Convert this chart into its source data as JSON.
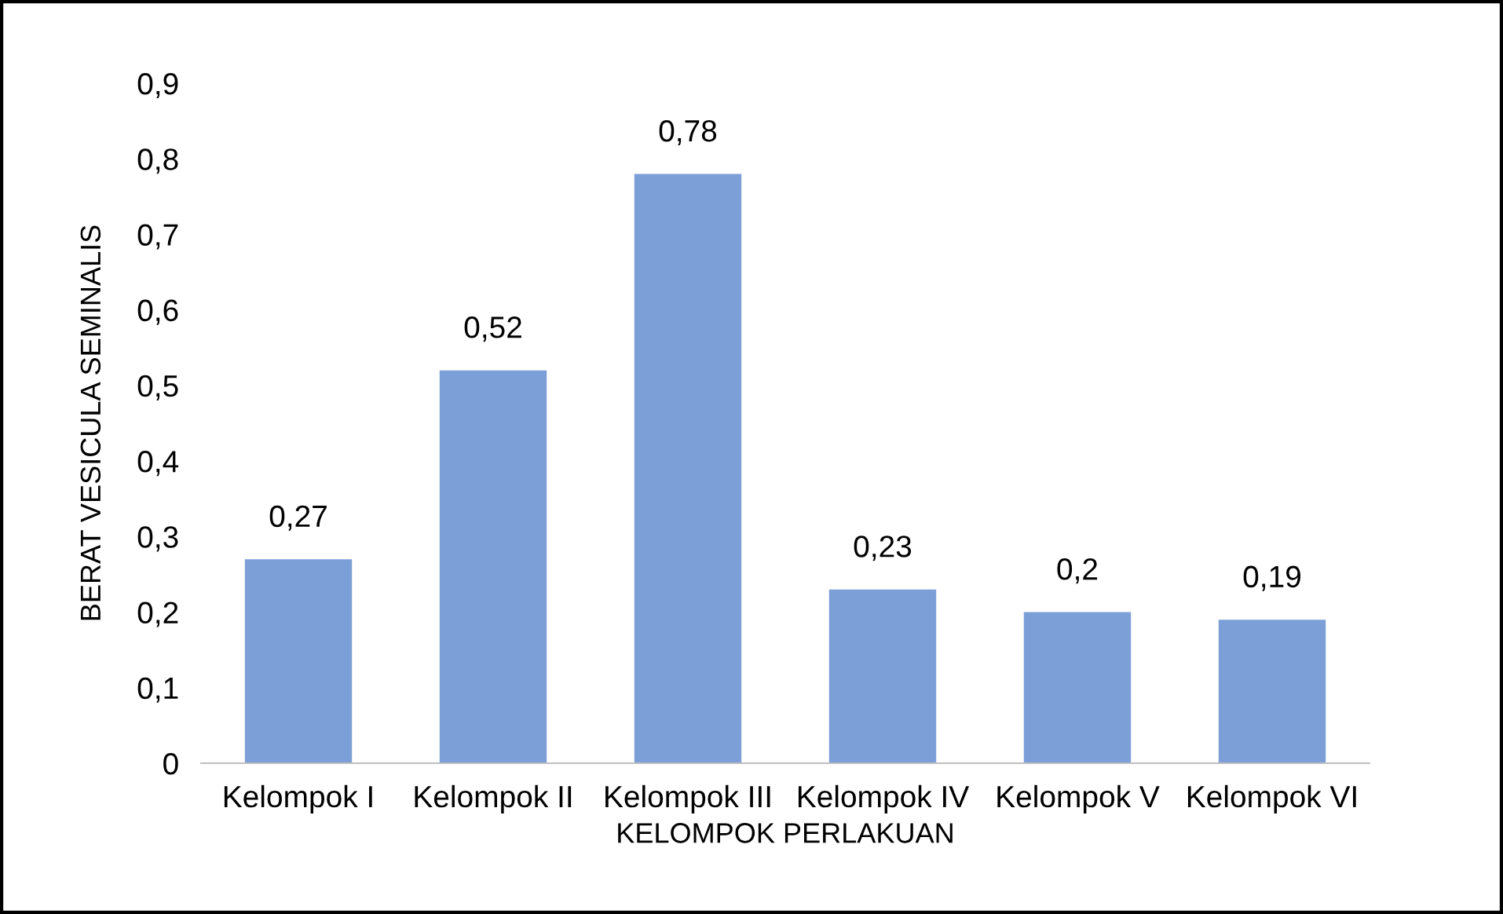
{
  "chart_data": {
    "type": "bar",
    "categories": [
      "Kelompok I",
      "Kelompok II",
      "Kelompok III",
      "Kelompok IV",
      "Kelompok V",
      "Kelompok VI"
    ],
    "values": [
      0.27,
      0.52,
      0.78,
      0.23,
      0.2,
      0.19
    ],
    "value_labels": [
      "0,27",
      "0,52",
      "0,78",
      "0,23",
      "0,2",
      "0,19"
    ],
    "color": "#7d9fd7",
    "xlabel": "KELOMPOK PERLAKUAN",
    "ylabel": "BERAT VESICULA SEMINALIS",
    "ylim": [
      0,
      0.9
    ],
    "yticks": [
      0,
      {
        "value": 0.1,
        "label": "0,1"
      },
      {
        "value": 0.2,
        "label": "0,2"
      },
      {
        "value": 0.3,
        "label": "0,3"
      },
      {
        "value": 0.4,
        "label": "0,4"
      },
      {
        "value": 0.5,
        "label": "0,5"
      },
      {
        "value": 0.6,
        "label": "0,6"
      },
      {
        "value": 0.7,
        "label": "0,7"
      },
      {
        "value": 0.8,
        "label": "0,8"
      },
      {
        "value": 0.9,
        "label": "0,9"
      }
    ],
    "grid": false,
    "legend": false
  }
}
